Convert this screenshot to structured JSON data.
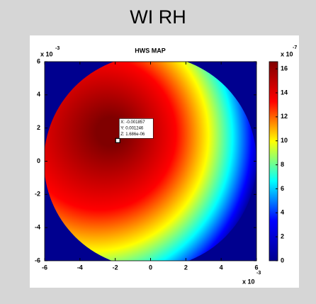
{
  "page_title": "WI RH",
  "chart_data": {
    "type": "heatmap",
    "title": "HWS MAP",
    "xlim": [
      -6,
      6
    ],
    "xticks": [
      -6,
      -4,
      -2,
      0,
      2,
      4,
      6
    ],
    "ylim": [
      -6,
      6
    ],
    "yticks": [
      -6,
      -4,
      -2,
      0,
      2,
      4,
      6
    ],
    "x_exponent": {
      "base": "x 10",
      "power": "-3"
    },
    "y_exponent": {
      "base": "x 10",
      "power": "-3"
    },
    "colorbar": {
      "clim": [
        0,
        16.6
      ],
      "ticks": [
        0,
        2,
        4,
        6,
        8,
        10,
        12,
        14,
        16
      ],
      "exponent": {
        "base": "x 10",
        "power": "-7"
      }
    },
    "colormap": [
      "#00008f",
      "#0000ff",
      "#00ffff",
      "#ffff00",
      "#ff0000",
      "#800000"
    ],
    "background_color": "#00008f",
    "datatip": {
      "x": -1.857,
      "y": 1.246,
      "lines": [
        "X: -0.001857",
        "Y: 0.001246",
        "Z: 1.686e-06"
      ]
    }
  }
}
